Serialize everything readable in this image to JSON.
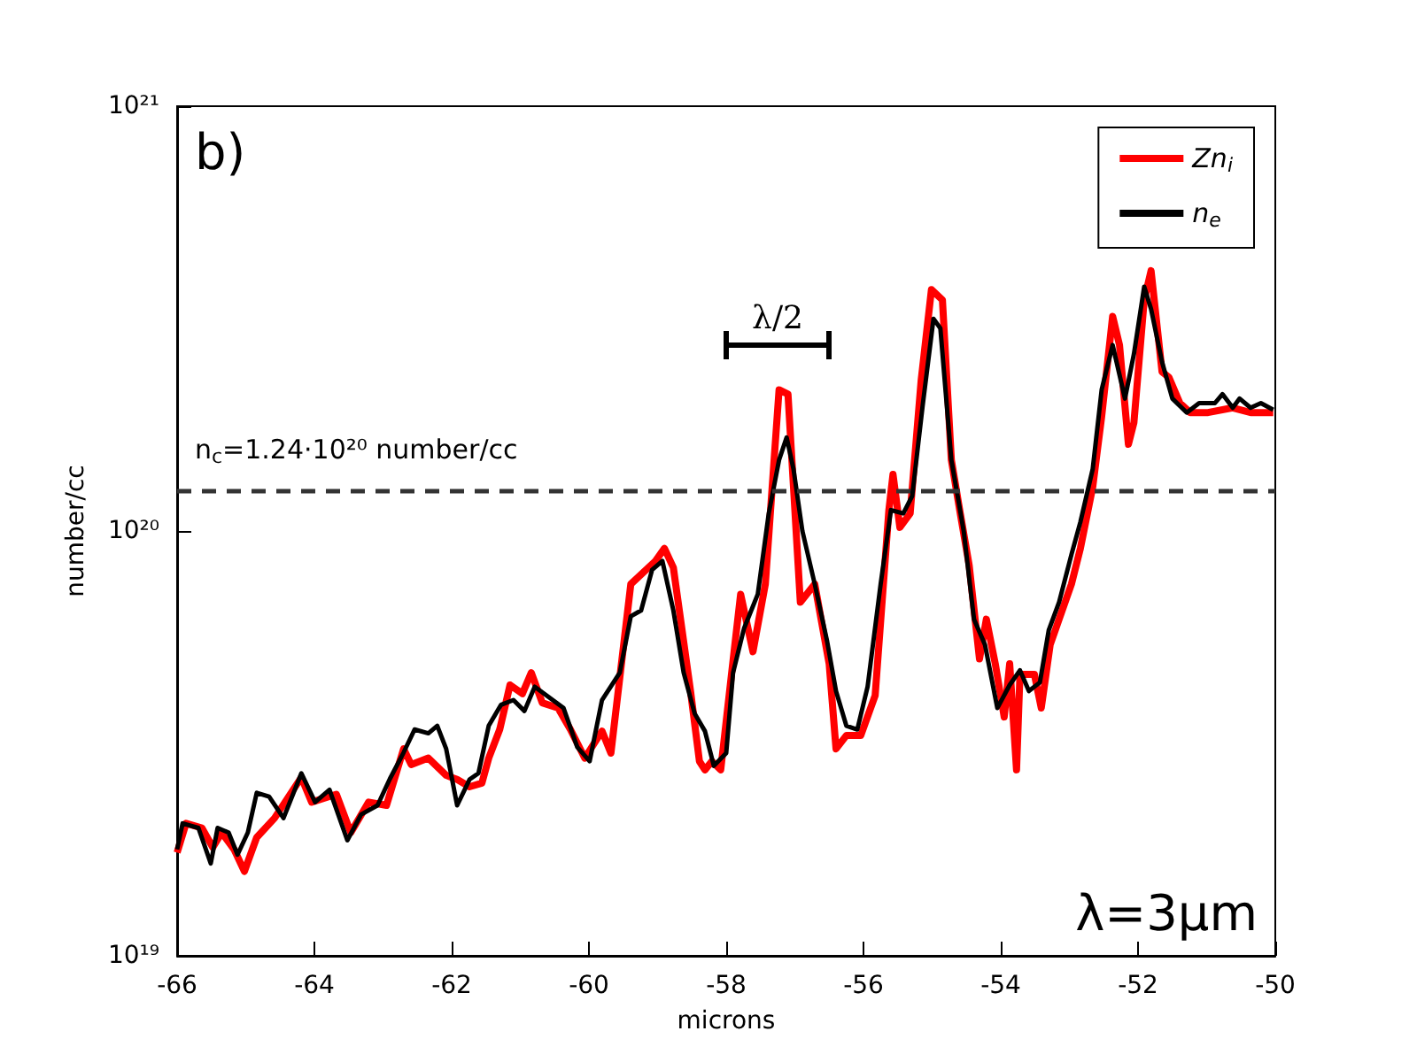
{
  "chart_data": {
    "type": "line",
    "xlabel": "microns",
    "ylabel": "number/cc",
    "xlim": [
      -66,
      -50
    ],
    "xticks": [
      -66,
      -64,
      -62,
      -60,
      -58,
      -56,
      -54,
      -52,
      -50
    ],
    "ylim": [
      1e+19,
      1e+21
    ],
    "yticks": [
      {
        "value": 1e+19,
        "label": "10¹⁹"
      },
      {
        "value": 1e+20,
        "label": "10²⁰"
      },
      {
        "value": 1e+21,
        "label": "10²¹"
      }
    ],
    "log": "y",
    "grid": false,
    "legend": "top right",
    "marker": "none",
    "line_style": "solid",
    "ref_lines": [
      {
        "axis": "y",
        "value": 1.24e+20,
        "color": "#333333",
        "line_style": "dashed"
      }
    ],
    "annotations": [
      "b)",
      "λ=3μm",
      "λ/2",
      "n$_{c}$=1.24·10²⁰ number/cc"
    ],
    "series": [
      {
        "name": "Zn$_{i}$",
        "color": "#ff0000",
        "x": [
          -66.0,
          -65.87,
          -65.64,
          -65.48,
          -65.35,
          -65.17,
          -65.02,
          -64.84,
          -64.58,
          -64.19,
          -64.04,
          -63.68,
          -63.47,
          -63.21,
          -62.95,
          -62.7,
          -62.59,
          -62.34,
          -62.08,
          -61.92,
          -61.74,
          -61.56,
          -61.46,
          -61.3,
          -61.15,
          -60.97,
          -60.84,
          -60.68,
          -60.45,
          -60.27,
          -60.06,
          -59.81,
          -59.68,
          -59.39,
          -59.03,
          -58.9,
          -58.77,
          -58.52,
          -58.39,
          -58.31,
          -58.21,
          -58.08,
          -57.9,
          -57.79,
          -57.61,
          -57.43,
          -57.23,
          -57.1,
          -56.92,
          -56.71,
          -56.5,
          -56.4,
          -56.25,
          -56.04,
          -55.83,
          -55.63,
          -55.57,
          -55.47,
          -55.32,
          -55.16,
          -55.01,
          -54.85,
          -54.72,
          -54.59,
          -54.46,
          -54.31,
          -54.21,
          -54.08,
          -53.95,
          -53.87,
          -53.77,
          -53.72,
          -53.51,
          -53.41,
          -53.28,
          -53.15,
          -52.97,
          -52.84,
          -52.66,
          -52.53,
          -52.37,
          -52.27,
          -52.14,
          -52.06,
          -51.91,
          -51.81,
          -51.65,
          -51.55,
          -51.39,
          -51.24,
          -50.98,
          -50.62,
          -50.36,
          -50.03
        ],
        "values": [
          1.75e+19,
          2.05e+19,
          2e+19,
          1.8e+19,
          1.95e+19,
          1.78e+19,
          1.58e+19,
          1.9e+19,
          2.11e+19,
          2.63e+19,
          2.3e+19,
          2.4e+19,
          1.95e+19,
          2.3e+19,
          2.26e+19,
          3.07e+19,
          2.82e+19,
          2.92e+19,
          2.66e+19,
          2.6e+19,
          2.5e+19,
          2.55e+19,
          2.92e+19,
          3.41e+19,
          4.34e+19,
          4.14e+19,
          4.64e+19,
          3.94e+19,
          3.83e+19,
          3.41e+19,
          2.92e+19,
          3.38e+19,
          3e+19,
          7.5e+19,
          8.5e+19,
          9.1e+19,
          8.2e+19,
          4.2e+19,
          2.87e+19,
          2.74e+19,
          2.87e+19,
          2.74e+19,
          4.96e+19,
          7.1e+19,
          5.2e+19,
          7.5e+19,
          2.15e+20,
          2.1e+20,
          6.8e+19,
          7.5e+19,
          4.87e+19,
          3.07e+19,
          3.3e+19,
          3.3e+19,
          4.1e+19,
          1.12e+20,
          1.36e+20,
          1.02e+20,
          1.1e+20,
          2.26e+20,
          3.7e+20,
          3.5e+20,
          1.47e+20,
          1.1e+20,
          8.3e+19,
          5e+19,
          6.2e+19,
          4.87e+19,
          3.65e+19,
          4.87e+19,
          2.74e+19,
          4.6e+19,
          4.6e+19,
          3.83e+19,
          5.4e+19,
          6.2e+19,
          7.5e+19,
          9.1e+19,
          1.27e+20,
          1.86e+20,
          3.2e+20,
          2.74e+20,
          1.6e+20,
          1.8e+20,
          3.5e+20,
          4.1e+20,
          2.37e+20,
          2.3e+20,
          2e+20,
          1.9e+20,
          1.9e+20,
          1.95e+20,
          1.9e+20,
          1.9e+20
        ]
      },
      {
        "name": "n$_{e}$",
        "color": "#000000",
        "x": [
          -66.0,
          -65.92,
          -65.69,
          -65.51,
          -65.41,
          -65.25,
          -65.12,
          -64.97,
          -64.84,
          -64.66,
          -64.45,
          -64.19,
          -63.99,
          -63.78,
          -63.52,
          -63.32,
          -63.08,
          -62.9,
          -62.7,
          -62.54,
          -62.34,
          -62.21,
          -62.08,
          -61.92,
          -61.74,
          -61.61,
          -61.46,
          -61.28,
          -61.1,
          -60.94,
          -60.79,
          -60.37,
          -60.17,
          -59.99,
          -59.81,
          -59.55,
          -59.39,
          -59.24,
          -59.08,
          -58.93,
          -58.77,
          -58.62,
          -58.46,
          -58.31,
          -58.18,
          -58.0,
          -57.9,
          -57.74,
          -57.54,
          -57.38,
          -57.23,
          -57.12,
          -57.02,
          -56.89,
          -56.71,
          -56.53,
          -56.4,
          -56.25,
          -56.09,
          -55.94,
          -55.75,
          -55.6,
          -55.42,
          -55.29,
          -55.14,
          -54.98,
          -54.88,
          -54.72,
          -54.54,
          -54.39,
          -54.23,
          -54.05,
          -53.87,
          -53.72,
          -53.59,
          -53.43,
          -53.3,
          -53.15,
          -52.97,
          -52.84,
          -52.66,
          -52.53,
          -52.37,
          -52.19,
          -52.06,
          -51.91,
          -51.81,
          -51.65,
          -51.5,
          -51.29,
          -51.11,
          -50.88,
          -50.77,
          -50.62,
          -50.52,
          -50.36,
          -50.21,
          -50.03
        ],
        "values": [
          1.78e+19,
          2.05e+19,
          2e+19,
          1.65e+19,
          2e+19,
          1.95e+19,
          1.73e+19,
          1.95e+19,
          2.42e+19,
          2.37e+19,
          2.11e+19,
          2.69e+19,
          2.3e+19,
          2.46e+19,
          1.87e+19,
          2.15e+19,
          2.26e+19,
          2.61e+19,
          3.01e+19,
          3.41e+19,
          3.34e+19,
          3.48e+19,
          3.07e+19,
          2.26e+19,
          2.6e+19,
          2.69e+19,
          3.48e+19,
          3.9e+19,
          4e+19,
          3.77e+19,
          4.3e+19,
          3.83e+19,
          3.1e+19,
          2.87e+19,
          4e+19,
          4.64e+19,
          6.3e+19,
          6.5e+19,
          8.1e+19,
          8.5e+19,
          6.5e+19,
          4.64e+19,
          3.72e+19,
          3.38e+19,
          2.8e+19,
          3e+19,
          4.64e+19,
          5.9e+19,
          7.1e+19,
          1.1e+20,
          1.47e+20,
          1.66e+20,
          1.4e+20,
          1e+20,
          7.5e+19,
          5.5e+19,
          4.2e+19,
          3.48e+19,
          3.41e+19,
          4.3e+19,
          7.5e+19,
          1.12e+20,
          1.1e+20,
          1.21e+20,
          1.96e+20,
          3.16e+20,
          3e+20,
          1.47e+20,
          1e+20,
          6.2e+19,
          5.4e+19,
          3.83e+19,
          4.34e+19,
          4.7e+19,
          4.2e+19,
          4.4e+19,
          5.85e+19,
          6.8e+19,
          8.8e+19,
          1.05e+20,
          1.4e+20,
          2.15e+20,
          2.74e+20,
          2.05e+20,
          2.61e+20,
          3.76e+20,
          3.33e+20,
          2.5e+20,
          2.05e+20,
          1.9e+20,
          2e+20,
          2e+20,
          2.1e+20,
          1.95e+20,
          2.05e+20,
          1.95e+20,
          2e+20,
          1.93e+20
        ]
      }
    ]
  }
}
